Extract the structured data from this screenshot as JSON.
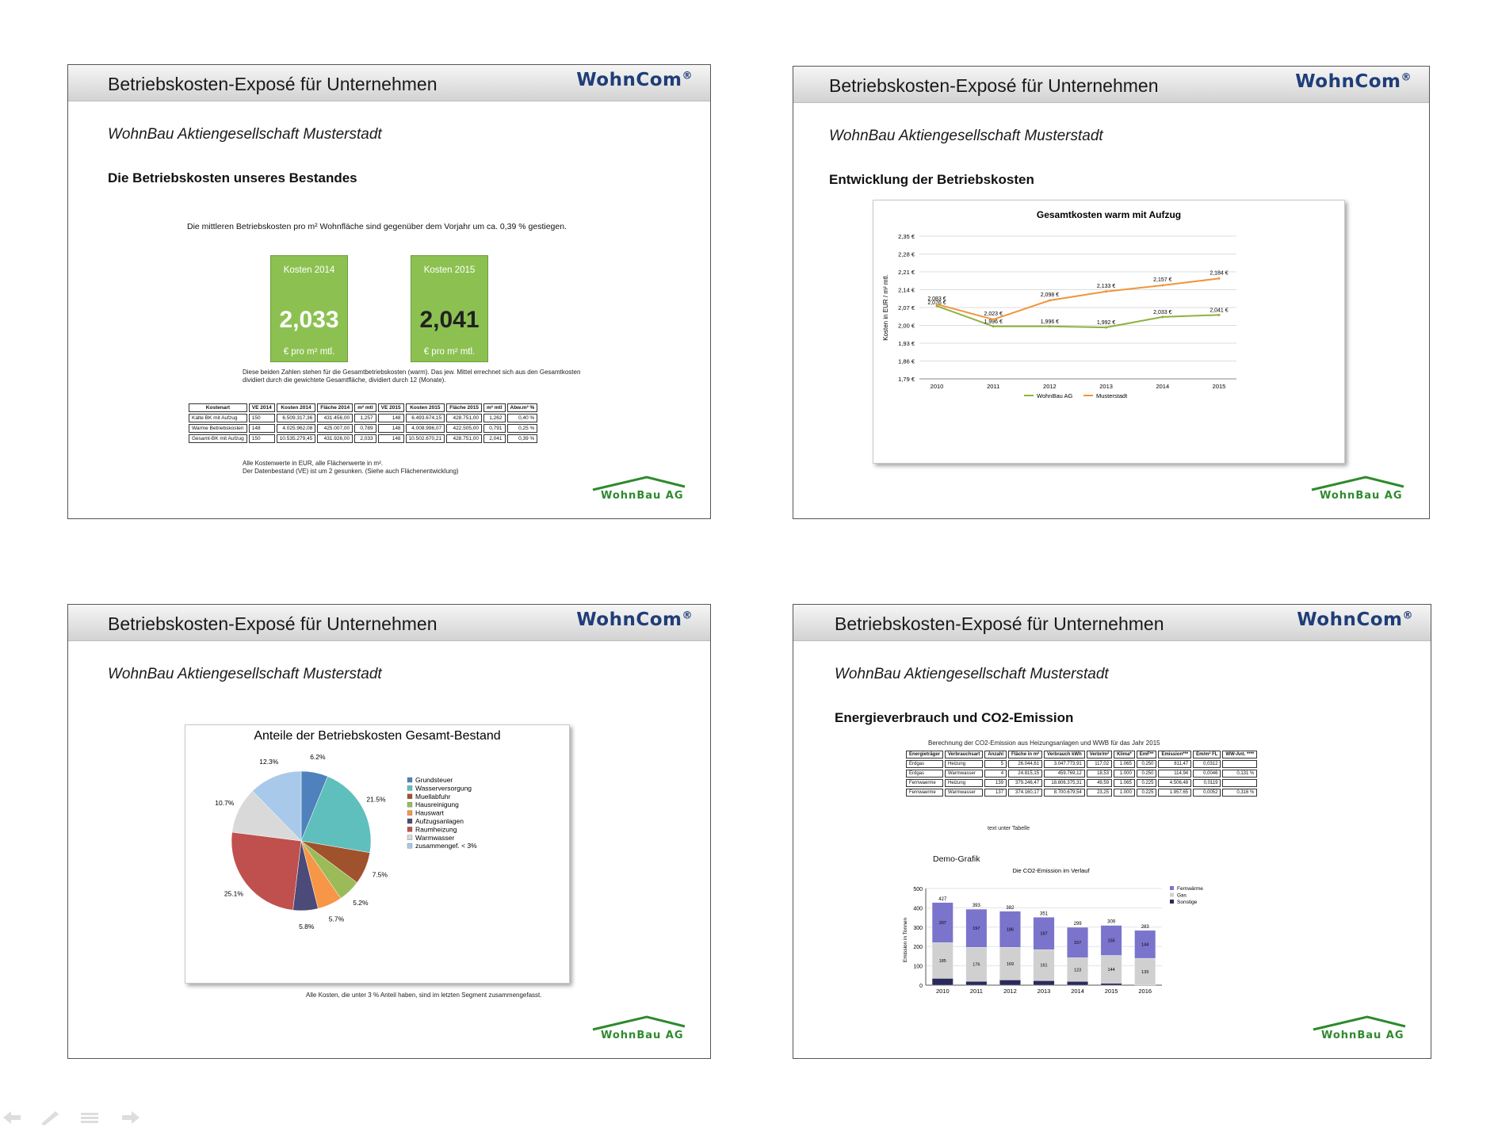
{
  "slide_title": "Betriebskosten-Exposé für Unternehmen",
  "brand": "WohnCom",
  "brand_reg": "®",
  "company": "WohnBau Aktiengesellschaft Musterstadt",
  "footer_brand": "WohnBau AG",
  "colors": {
    "brand_blue": "#1f3d78",
    "green": "#8cc152",
    "wohnbau_green": "#2d8a2d"
  },
  "slide1": {
    "section": "Die Betriebskosten unseres Bestandes",
    "intro": "Die mittleren Betriebskosten pro m² Wohnfläche sind gegenüber dem Vorjahr um ca. 0,39 % gestiegen.",
    "box2014": {
      "label": "Kosten 2014",
      "value": "2,033",
      "unit": "€ pro m² mtl."
    },
    "box2015": {
      "label": "Kosten 2015",
      "value": "2,041",
      "unit": "€ pro m² mtl."
    },
    "note1": "Diese beiden Zahlen stehen für die Gesamtbetriebskosten (warm). Das jew. Mittel errechnet sich aus den Gesamtkosten",
    "note2": "dividiert durch die gewichtete Gesamtfläche, dividiert durch 12 (Monate).",
    "table": {
      "headers": [
        "Kostenart",
        "VE 2014",
        "Kosten 2014",
        "Fläche 2014",
        "m² mtl",
        "VE 2015",
        "Kosten 2015",
        "Fläche 2015",
        "m² mtl",
        "Abw.m² %"
      ],
      "rows": [
        [
          "Kalte BK mit Aufzug",
          "150",
          "6.509.317,36",
          "431.456,00",
          "1,257",
          "148",
          "6.493.674,15",
          "428.751,00",
          "1,262",
          "0,40 %"
        ],
        [
          "Warme Betriebskosten",
          "148",
          "4.025.962,08",
          "425.007,00",
          "0,789",
          "148",
          "4.008.996,07",
          "422.505,00",
          "0,791",
          "0,25 %"
        ],
        [
          "Gesamt-BK mit Aufzug",
          "150",
          "10.535.279,45",
          "431.926,00",
          "2,033",
          "148",
          "10.502.670,21",
          "428.751,00",
          "2,041",
          "0,39 %"
        ]
      ]
    },
    "foot1": "Alle Kostenwerte in EUR, alle Flächenwerte in m².",
    "foot2": "Der Datenbestand (VE) ist um 2 gesunken. (Siehe auch Flächenentwicklung)"
  },
  "slide2": {
    "section": "Entwicklung der Betriebskosten",
    "chart_title": "Gesamtkosten warm mit Aufzug",
    "ylabel": "Kosten in EUR / m² mtl."
  },
  "slide3": {
    "chart_title": "Anteile der Betriebskosten Gesamt-Bestand",
    "note": "Alle Kosten, die unter 3 % Anteil haben, sind im letzten Segment zusammengefasst."
  },
  "slide4": {
    "section": "Energieverbrauch und CO2-Emission",
    "table_caption": "Berechnung der CO2-Emission aus Heizungsanlagen und WWB für das Jahr 2015",
    "table": {
      "headers": [
        "Energieträger",
        "Verbrauchsart",
        "Anzahl",
        "Fläche in m²",
        "Verbrauch kWh",
        "Verbr/m²",
        "Klima*",
        "EmF**",
        "Emission***",
        "Em/m² FL",
        "WW-Ant. ****"
      ],
      "rows": [
        [
          "Erdgas",
          "Heizung",
          "5",
          "26.044,61",
          "3.047.773,91",
          "117,02",
          "1.065",
          "0.250",
          "811,47",
          "0,0312",
          ""
        ],
        [
          "Erdgas",
          "Warmwasser",
          "4",
          "24.815,15",
          "459.769,12",
          "18,53",
          "1.000",
          "0.250",
          "114,94",
          "0,0046",
          "0,131 %"
        ],
        [
          "Fernwaerme",
          "Heizung",
          "139",
          "379.246,47",
          "18.806.375,31",
          "49,59",
          "1.065",
          "0.225",
          "4.506,48",
          "0,0119",
          ""
        ],
        [
          "Fernwaerme",
          "Warmwasser",
          "137",
          "374.160,17",
          "8.700.679,54",
          "23,25",
          "1.000",
          "0.225",
          "1.957,65",
          "0,0052",
          "0,316 %"
        ]
      ]
    },
    "table_note": "text unter Tabelle",
    "demo_label": "Demo-Grafik",
    "chart_title": "Die CO2-Emission im Verlauf",
    "ylabel": "Emission in Tonnen"
  },
  "chart_data": [
    {
      "type": "line",
      "title": "Gesamtkosten warm mit Aufzug",
      "ylabel": "Kosten in EUR / m² mtl.",
      "x": [
        "2010",
        "2011",
        "2012",
        "2013",
        "2014",
        "2015"
      ],
      "ylim": [
        1.79,
        2.35
      ],
      "yticks": [
        "1,79 €",
        "1,86 €",
        "1,93 €",
        "2,00 €",
        "2,07 €",
        "2,14 €",
        "2,21 €",
        "2,28 €",
        "2,35 €"
      ],
      "series": [
        {
          "name": "WohnBau AG",
          "color": "#8db33f",
          "values": [
            2.076,
            1.996,
            1.996,
            1.992,
            2.033,
            2.041
          ],
          "labels": [
            "2,076 €",
            "1,996 €",
            "1,996 €",
            "1,992 €",
            "2,033 €",
            "2,041 €"
          ]
        },
        {
          "name": "Musterstadt",
          "color": "#f0953a",
          "values": [
            2.083,
            2.023,
            2.098,
            2.133,
            2.157,
            2.184
          ],
          "labels": [
            "2,083 €",
            "2,023 €",
            "2,098 €",
            "2,133 €",
            "2,157 €",
            "2,184 €"
          ]
        }
      ]
    },
    {
      "type": "pie",
      "title": "Anteile der Betriebskosten Gesamt-Bestand",
      "slices": [
        {
          "name": "Grundsteuer",
          "value": 6.2,
          "label": "6.2%",
          "color": "#4f81bd"
        },
        {
          "name": "Wasserversorgung",
          "value": 21.5,
          "label": "21.5%",
          "color": "#5fbfbd"
        },
        {
          "name": "Muellabfuhr",
          "value": 7.5,
          "label": "7.5%",
          "color": "#a0522d"
        },
        {
          "name": "Hausreinigung",
          "value": 5.2,
          "label": "5.2%",
          "color": "#9bbb59"
        },
        {
          "name": "Hauswart",
          "value": 5.7,
          "label": "5.7%",
          "color": "#f79646"
        },
        {
          "name": "Aufzugsanlagen",
          "value": 5.8,
          "label": "5.8%",
          "color": "#4b4a78"
        },
        {
          "name": "Raumheizung",
          "value": 25.1,
          "label": "25.1%",
          "color": "#c0504d"
        },
        {
          "name": "Warmwasser",
          "value": 10.7,
          "label": "10.7%",
          "color": "#d9d9d9"
        },
        {
          "name": "zusammengef. < 3%",
          "value": 12.3,
          "label": "12.3%",
          "color": "#a9c9ea"
        }
      ]
    },
    {
      "type": "bar",
      "stacked": true,
      "title": "Die CO2-Emission im Verlauf",
      "ylabel": "Emission in Tonnen",
      "categories": [
        "2010",
        "2011",
        "2012",
        "2013",
        "2014",
        "2015",
        "2016"
      ],
      "ylim": [
        0,
        500
      ],
      "yticks": [
        "0",
        "100",
        "200",
        "300",
        "400",
        "500"
      ],
      "totals": [
        427,
        393,
        382,
        351,
        299,
        309,
        283
      ],
      "series": [
        {
          "name": "Sonstige",
          "color": "#2a2a5a",
          "values": [
            35,
            20,
            27,
            23,
            19,
            10,
            0
          ]
        },
        {
          "name": "Gas",
          "color": "#d0d0d0",
          "values": [
            185,
            176,
            169,
            161,
            123,
            144,
            139
          ]
        },
        {
          "name": "Fernwärme",
          "color": "#7b74cc",
          "values": [
            207,
            197,
            186,
            167,
            157,
            155,
            144
          ]
        }
      ]
    }
  ]
}
